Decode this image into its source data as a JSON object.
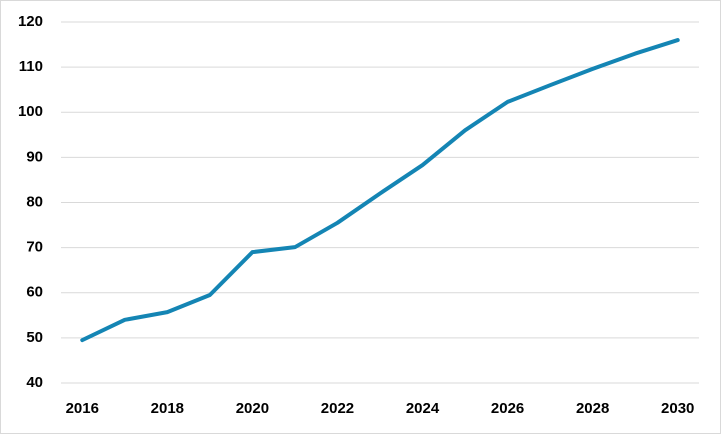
{
  "chart_data": {
    "type": "line",
    "x": [
      2016,
      2017,
      2018,
      2019,
      2020,
      2021,
      2022,
      2023,
      2024,
      2025,
      2026,
      2027,
      2028,
      2029,
      2030
    ],
    "series": [
      {
        "color": "#1485b4",
        "values": [
          49.5,
          54,
          55.7,
          59.5,
          69,
          70.1,
          75.5,
          82,
          88.3,
          96,
          102.3,
          106,
          109.6,
          113,
          116
        ]
      }
    ],
    "xlim": [
      2015.5,
      2030.5
    ],
    "xticks": [
      2016,
      2018,
      2020,
      2022,
      2024,
      2026,
      2028,
      2030
    ],
    "ylim": [
      40,
      120
    ],
    "yticks": [
      40,
      50,
      60,
      70,
      80,
      90,
      100,
      110,
      120
    ],
    "grid": true
  }
}
